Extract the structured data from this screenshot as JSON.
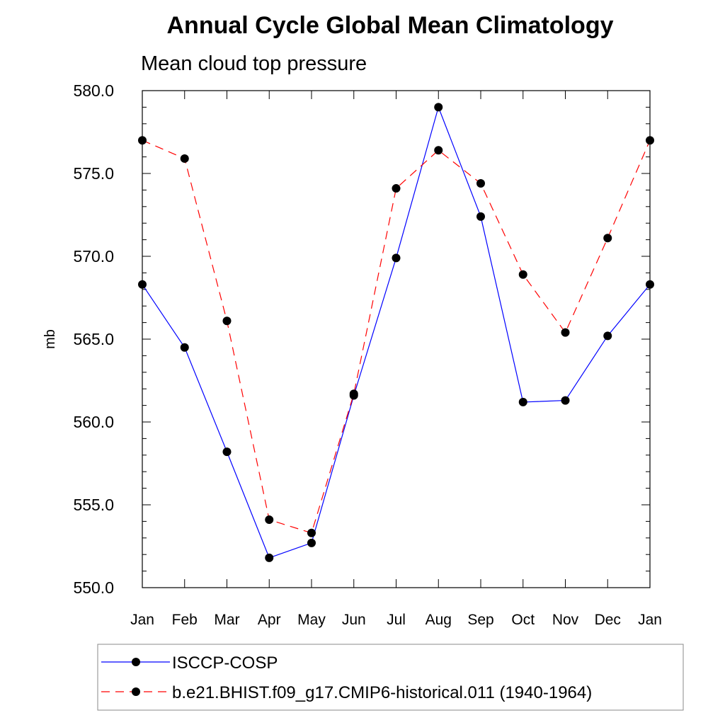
{
  "chart_data": {
    "type": "line",
    "title": "Annual Cycle Global Mean Climatology",
    "subtitle": "Mean cloud top pressure",
    "ylabel": "mb",
    "xlabel": "",
    "ylim": [
      550.0,
      580.0
    ],
    "yticks": [
      550.0,
      555.0,
      560.0,
      565.0,
      570.0,
      575.0,
      580.0
    ],
    "ytick_labels": [
      "550.0",
      "555.0",
      "560.0",
      "565.0",
      "570.0",
      "575.0",
      "580.0"
    ],
    "categories": [
      "Jan",
      "Feb",
      "Mar",
      "Apr",
      "May",
      "Jun",
      "Jul",
      "Aug",
      "Sep",
      "Oct",
      "Nov",
      "Dec",
      "Jan"
    ],
    "grid": false,
    "legend_position": "bottom",
    "series": [
      {
        "name": "ISCCP-COSP",
        "color": "#0000ff",
        "dash": "solid",
        "values": [
          568.3,
          564.5,
          558.2,
          551.8,
          552.7,
          561.6,
          569.9,
          579.0,
          572.4,
          561.2,
          561.3,
          565.2,
          568.3
        ]
      },
      {
        "name": "b.e21.BHIST.f09_g17.CMIP6-historical.011 (1940-1964)",
        "color": "#ff0000",
        "dash": "dashed",
        "values": [
          577.0,
          575.9,
          566.1,
          554.1,
          553.3,
          561.7,
          574.1,
          576.4,
          574.4,
          568.9,
          565.4,
          571.1,
          577.0
        ]
      }
    ]
  }
}
